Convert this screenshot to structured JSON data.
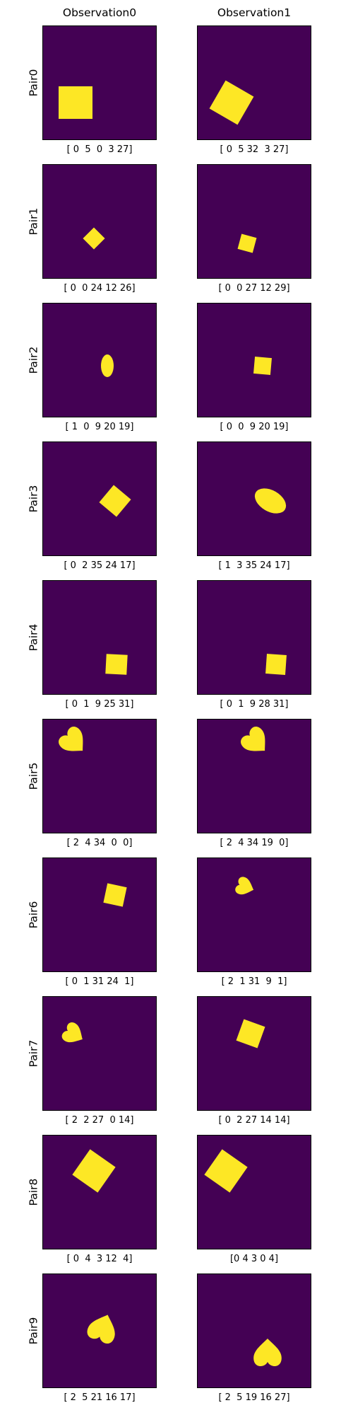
{
  "columns": [
    "Observation0",
    "Observation1"
  ],
  "colors": {
    "background": "#440154",
    "shape": "#fde725"
  },
  "rows": [
    {
      "label": "Pair0",
      "obs": [
        {
          "shape": "square",
          "caption": "[ 0  5  0  3 27]"
        },
        {
          "shape": "square",
          "caption": "[ 0  5 32  3 27]"
        }
      ]
    },
    {
      "label": "Pair1",
      "obs": [
        {
          "shape": "square",
          "caption": "[ 0  0 24 12 26]"
        },
        {
          "shape": "square",
          "caption": "[ 0  0 27 12 29]"
        }
      ]
    },
    {
      "label": "Pair2",
      "obs": [
        {
          "shape": "ellipse",
          "caption": "[ 1  0  9 20 19]"
        },
        {
          "shape": "square",
          "caption": "[ 0  0  9 20 19]"
        }
      ]
    },
    {
      "label": "Pair3",
      "obs": [
        {
          "shape": "square",
          "caption": "[ 0  2 35 24 17]"
        },
        {
          "shape": "ellipse",
          "caption": "[ 1  3 35 24 17]"
        }
      ]
    },
    {
      "label": "Pair4",
      "obs": [
        {
          "shape": "square",
          "caption": "[ 0  1  9 25 31]"
        },
        {
          "shape": "square",
          "caption": "[ 0  1  9 28 31]"
        }
      ]
    },
    {
      "label": "Pair5",
      "obs": [
        {
          "shape": "heart",
          "caption": "[ 2  4 34  0  0]"
        },
        {
          "shape": "heart",
          "caption": "[ 2  4 34 19  0]"
        }
      ]
    },
    {
      "label": "Pair6",
      "obs": [
        {
          "shape": "square",
          "caption": "[ 0  1 31 24  1]"
        },
        {
          "shape": "heart",
          "caption": "[ 2  1 31  9  1]"
        }
      ]
    },
    {
      "label": "Pair7",
      "obs": [
        {
          "shape": "heart",
          "caption": "[ 2  2 27  0 14]"
        },
        {
          "shape": "square",
          "caption": "[ 0  2 27 14 14]"
        }
      ]
    },
    {
      "label": "Pair8",
      "obs": [
        {
          "shape": "square",
          "caption": "[ 0  4  3 12  4]"
        },
        {
          "shape": "square",
          "caption": "[0 4 3 0 4]"
        }
      ]
    },
    {
      "label": "Pair9",
      "obs": [
        {
          "shape": "heart",
          "caption": "[ 2  5 21 16 17]"
        },
        {
          "shape": "heart",
          "caption": "[ 2  5 19 16 27]"
        }
      ]
    }
  ]
}
